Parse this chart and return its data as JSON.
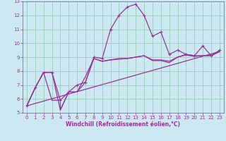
{
  "xlabel": "Windchill (Refroidissement éolien,°C)",
  "bg_color": "#cce8f0",
  "grid_color": "#99ccbb",
  "line_color": "#993399",
  "axis_color": "#666688",
  "xlim": [
    -0.5,
    23.5
  ],
  "ylim": [
    5,
    13
  ],
  "xticks": [
    0,
    1,
    2,
    3,
    4,
    5,
    6,
    7,
    8,
    9,
    10,
    11,
    12,
    13,
    14,
    15,
    16,
    17,
    18,
    19,
    20,
    21,
    22,
    23
  ],
  "yticks": [
    5,
    6,
    7,
    8,
    9,
    10,
    11,
    12,
    13
  ],
  "lines": [
    {
      "x": [
        0,
        1,
        2,
        3,
        4,
        4,
        5,
        6,
        7,
        8,
        9,
        10,
        11,
        12,
        13,
        14,
        15,
        16,
        17,
        18,
        19,
        20,
        21,
        22,
        23
      ],
      "y": [
        5.5,
        6.8,
        7.9,
        5.9,
        5.9,
        5.2,
        6.5,
        6.5,
        7.2,
        8.9,
        8.7,
        8.8,
        8.85,
        8.9,
        9.0,
        9.1,
        8.75,
        8.75,
        8.6,
        9.0,
        9.15,
        9.05,
        9.1,
        9.1,
        9.4
      ],
      "marker": false
    },
    {
      "x": [
        0,
        1,
        2,
        3,
        4,
        5,
        6,
        7,
        8,
        9,
        10,
        11,
        12,
        13,
        14,
        15,
        16,
        17,
        18,
        19,
        20,
        21,
        22,
        23
      ],
      "y": [
        5.5,
        6.8,
        7.9,
        7.9,
        5.2,
        6.5,
        6.5,
        7.6,
        8.9,
        8.7,
        8.8,
        8.9,
        8.9,
        9.0,
        9.1,
        8.8,
        8.8,
        8.7,
        9.0,
        9.2,
        9.1,
        9.1,
        9.1,
        9.4
      ],
      "marker": false
    },
    {
      "x": [
        0,
        1,
        2,
        3,
        4,
        5,
        6,
        7,
        8,
        9,
        10,
        11,
        12,
        13,
        14,
        15,
        16,
        17,
        18,
        19,
        20,
        21,
        22,
        23
      ],
      "y": [
        5.5,
        6.8,
        7.9,
        7.9,
        5.9,
        6.5,
        7.0,
        7.2,
        9.0,
        8.9,
        11.0,
        12.0,
        12.6,
        12.8,
        12.0,
        10.5,
        10.8,
        9.2,
        9.5,
        9.2,
        9.1,
        9.8,
        9.1,
        9.5
      ],
      "marker": true
    },
    {
      "x": [
        0,
        23
      ],
      "y": [
        5.5,
        9.4
      ],
      "marker": false
    }
  ]
}
